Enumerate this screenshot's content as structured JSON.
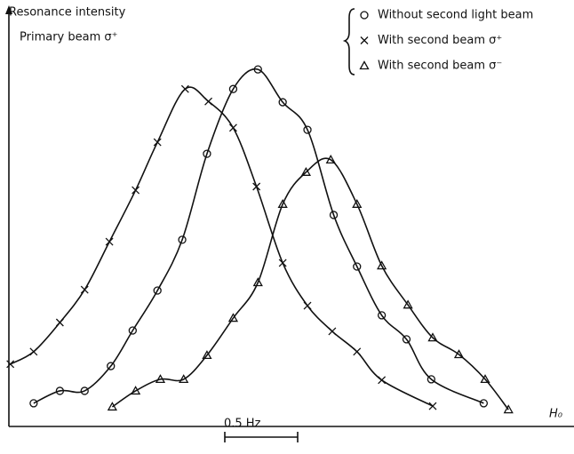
{
  "chart_data": {
    "type": "scatter",
    "y_label_line1": "Resonance intensity",
    "y_label_line2": "Primary beam σ⁺",
    "x_label": "H₀",
    "scale_bar_label": "0.5 Hz",
    "xlim": [
      0,
      3.88
    ],
    "ylim": [
      0,
      100
    ],
    "color": "#111111",
    "series": [
      {
        "name": "Without second light beam",
        "marker": "circle",
        "x": [
          0.17,
          0.35,
          0.52,
          0.7,
          0.85,
          1.02,
          1.19,
          1.36,
          1.54,
          1.71,
          1.88,
          2.05,
          2.23,
          2.39,
          2.56,
          2.73,
          2.9,
          3.26
        ],
        "values": [
          5.8,
          8.9,
          8.9,
          15.1,
          24,
          34,
          46.7,
          68.2,
          84.4,
          89.3,
          81.1,
          74.2,
          52.9,
          40,
          27.8,
          21.8,
          11.8,
          5.8
        ]
      },
      {
        "name": "With second beam σ⁺",
        "marker": "cross",
        "x": [
          0.01,
          0.17,
          0.35,
          0.52,
          0.69,
          0.87,
          1.02,
          1.21,
          1.37,
          1.54,
          1.7,
          1.88,
          2.05,
          2.22,
          2.39,
          2.56,
          2.91
        ],
        "values": [
          15.6,
          18.7,
          26,
          34.2,
          46.2,
          59.1,
          71.1,
          84.4,
          81.3,
          74.7,
          60,
          40.9,
          30.2,
          23.8,
          18.7,
          11.6,
          5.1
        ]
      },
      {
        "name": "With second beam σ⁻",
        "marker": "triangle",
        "x": [
          0.71,
          0.87,
          1.04,
          1.2,
          1.36,
          1.54,
          1.71,
          1.88,
          2.04,
          2.21,
          2.39,
          2.56,
          2.74,
          2.91,
          3.09,
          3.27,
          3.43
        ],
        "values": [
          4.9,
          8.9,
          11.8,
          11.8,
          17.8,
          27.1,
          36,
          55.6,
          63.6,
          66.7,
          55.6,
          40.2,
          30.4,
          22.2,
          18,
          11.8,
          4.2
        ]
      }
    ]
  }
}
